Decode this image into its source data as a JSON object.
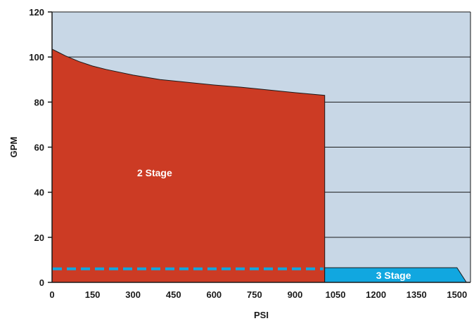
{
  "chart_data": {
    "type": "area",
    "xlabel": "PSI",
    "ylabel": "GPM",
    "xlim": [
      0,
      1550
    ],
    "ylim": [
      0,
      120
    ],
    "x_ticks": [
      "0",
      "150",
      "300",
      "450",
      "600",
      "750",
      "900",
      "1050",
      "1200",
      "1350",
      "1500"
    ],
    "y_ticks": [
      "0",
      "20",
      "40",
      "60",
      "80",
      "100",
      "120"
    ],
    "grid": "horizontal",
    "colors": {
      "plot_background": "#c8d7e6",
      "two_stage": "#cc3b24",
      "three_stage": "#11a7e0",
      "dashed_line": "#11a7e0",
      "grid": "#1a1a1a"
    },
    "series": [
      {
        "name": "2 Stage",
        "x": [
          0,
          25,
          50,
          100,
          150,
          200,
          300,
          400,
          500,
          600,
          700,
          800,
          900,
          1010
        ],
        "y": [
          103.5,
          102,
          100.5,
          98,
          96,
          94.5,
          92,
          90,
          88.8,
          87.6,
          86.6,
          85.4,
          84.2,
          83
        ]
      },
      {
        "name": "3 Stage",
        "x": [
          1010,
          1500,
          1535
        ],
        "y": [
          6.5,
          6.5,
          0
        ]
      }
    ],
    "reference_line": {
      "x": [
        0,
        1010
      ],
      "y": 6
    }
  }
}
